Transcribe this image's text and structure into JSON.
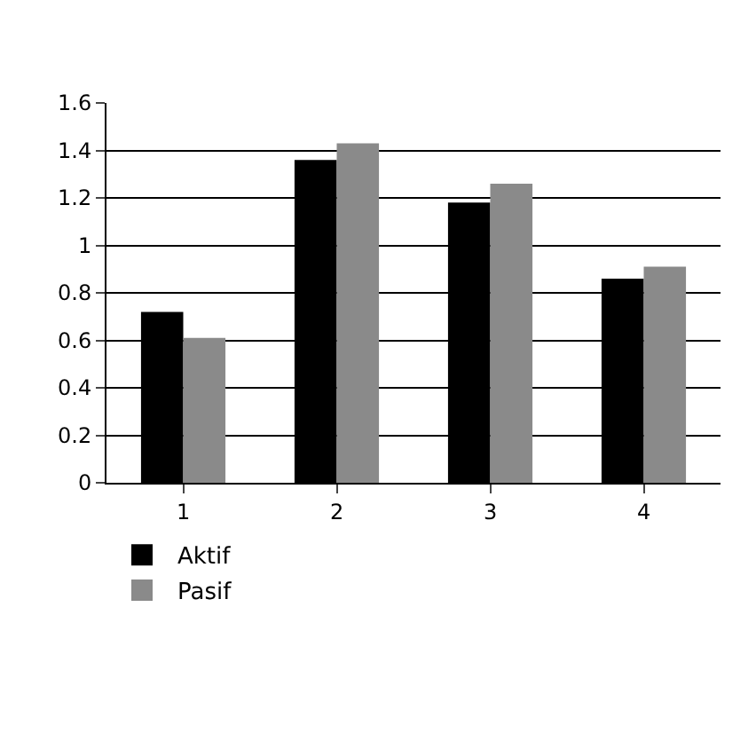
{
  "chart_data": {
    "type": "bar",
    "categories": [
      "1",
      "2",
      "3",
      "4"
    ],
    "series": [
      {
        "name": "Aktif",
        "color": "#000000",
        "values": [
          0.72,
          1.36,
          1.18,
          0.86
        ]
      },
      {
        "name": "Pasif",
        "color": "#8a8a8a",
        "values": [
          0.61,
          1.43,
          1.26,
          0.91
        ]
      }
    ],
    "ylim": [
      0,
      1.6
    ],
    "yticks": [
      0,
      0.2,
      0.4,
      0.6,
      0.8,
      1,
      1.2,
      1.4,
      1.6
    ],
    "grid": "y",
    "legend": "bottom left"
  }
}
